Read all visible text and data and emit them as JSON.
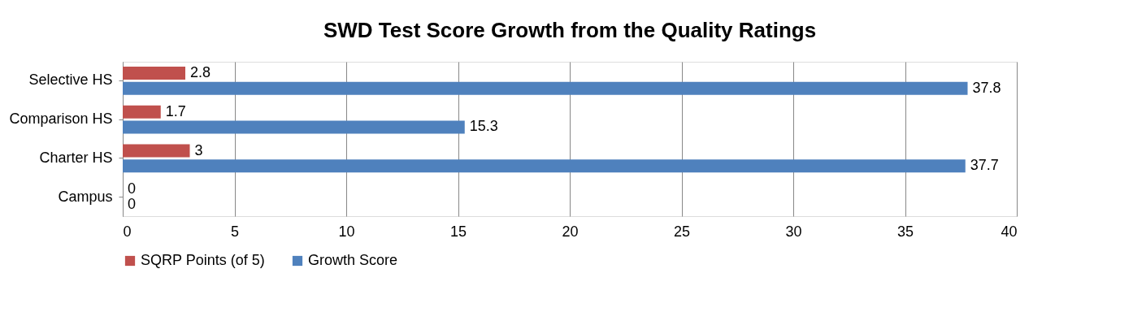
{
  "chart_data": {
    "type": "bar",
    "orientation": "horizontal",
    "title": "SWD Test Score Growth from the Quality Ratings",
    "categories": [
      "Selective HS",
      "Comparison HS",
      "Charter HS",
      "Campus"
    ],
    "series": [
      {
        "name": "SQRP Points (of 5)",
        "color": "#c0504d",
        "values": [
          2.8,
          1.7,
          3,
          0
        ]
      },
      {
        "name": "Growth Score",
        "color": "#4f81bd",
        "values": [
          37.8,
          15.3,
          37.7,
          0
        ]
      }
    ],
    "xlim": [
      0,
      40
    ],
    "xticks": [
      0,
      5,
      10,
      15,
      20,
      25,
      30,
      35,
      40
    ],
    "grid": "x",
    "legend": "bottom",
    "data_labels": true
  }
}
